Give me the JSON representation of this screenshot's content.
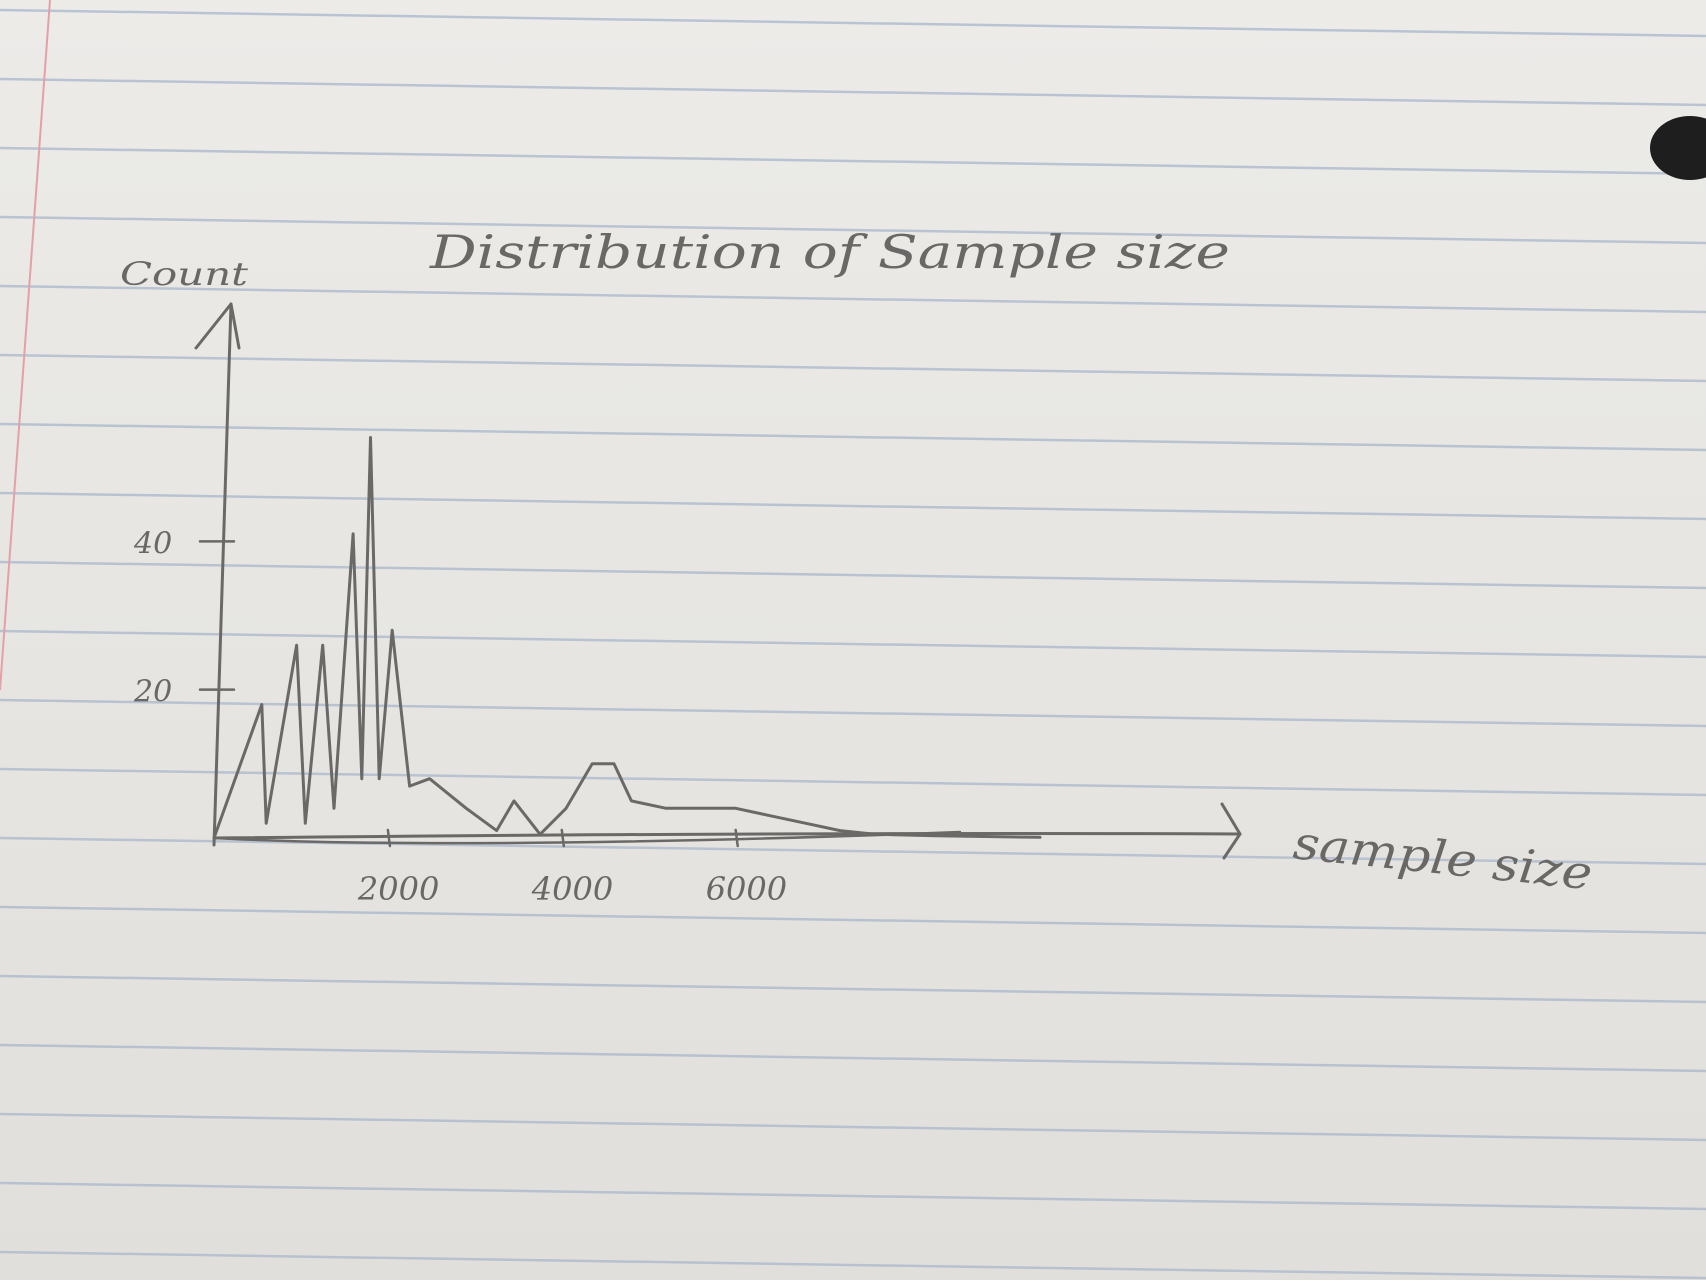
{
  "chart_data": {
    "type": "line",
    "title": "Distribution of Sample size",
    "xlabel": "sample size",
    "ylabel": "Count",
    "x_ticks": [
      {
        "value": 2000,
        "label": "2000"
      },
      {
        "value": 4000,
        "label": "4000"
      },
      {
        "value": 6000,
        "label": "6000"
      }
    ],
    "y_ticks": [
      {
        "value": 20,
        "label": "20"
      },
      {
        "value": 40,
        "label": "40"
      }
    ],
    "xlim": [
      0,
      11800
    ],
    "ylim": [
      0,
      72
    ],
    "grid": false,
    "legend": "none",
    "series": [
      {
        "points": [
          [
            0,
            0
          ],
          [
            550,
            18
          ],
          [
            600,
            2
          ],
          [
            950,
            26
          ],
          [
            1050,
            2
          ],
          [
            1250,
            26
          ],
          [
            1380,
            4
          ],
          [
            1600,
            41
          ],
          [
            1700,
            8
          ],
          [
            1800,
            54
          ],
          [
            1900,
            8
          ],
          [
            2050,
            28
          ],
          [
            2250,
            7
          ],
          [
            2480,
            8
          ],
          [
            2900,
            4
          ],
          [
            3250,
            1
          ],
          [
            3450,
            5
          ],
          [
            3750,
            0.5
          ],
          [
            4050,
            4
          ],
          [
            4350,
            10
          ],
          [
            4600,
            10
          ],
          [
            4800,
            5
          ],
          [
            5200,
            4
          ],
          [
            5600,
            4
          ],
          [
            6000,
            4
          ],
          [
            6400,
            3
          ],
          [
            6800,
            2
          ],
          [
            7200,
            1
          ],
          [
            7600,
            0.5
          ],
          [
            8300,
            0.3
          ],
          [
            9500,
            0.1
          ]
        ]
      }
    ],
    "colors": {
      "pencil": "#6b6967",
      "paper": "#e9e8e4",
      "rule": "#a9b7cc",
      "margin": "#e3a0a8"
    }
  }
}
